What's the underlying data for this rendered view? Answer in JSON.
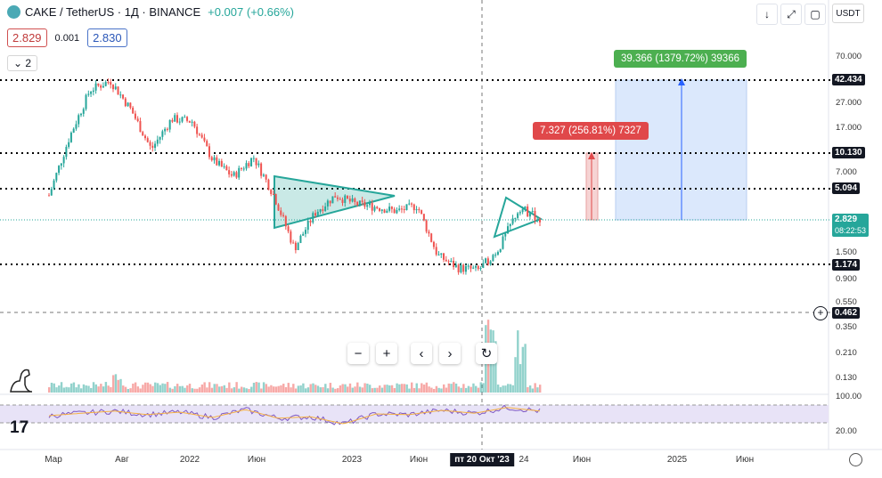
{
  "header": {
    "symbol": "CAKE / TetherUS · 1Д · BINANCE",
    "change": "+0.007 (+0.66%)",
    "bid": "2.829",
    "spread": "0.001",
    "ask": "2.830",
    "indicator_count": "2",
    "currency": "USDT"
  },
  "icons": [
    "down-arrow-icon",
    "fullscreen-icon",
    "camera-icon",
    "zoom-out-icon",
    "zoom-in-icon",
    "scroll-left-icon",
    "scroll-right-icon",
    "reset-icon",
    "add-icon",
    "settings-icon",
    "dino-icon",
    "tv-logo-icon"
  ],
  "price_axis": [
    "70.000",
    "27.000",
    "17.000",
    "7.000",
    "1.500",
    "0.900",
    "0.550",
    "0.350",
    "0.210",
    "0.130"
  ],
  "rsi_axis": [
    "100.00",
    "20.00"
  ],
  "price_tags": {
    "t1": "42.434",
    "t2": "10.130",
    "t3": "5.094",
    "current": "2.829",
    "countdown": "08:22:53",
    "t4": "1.174",
    "crosshair": "0.462"
  },
  "measure_green": "39.366 (1379.72%) 39366",
  "measure_red": "7.327 (256.81%) 7327",
  "time_axis": [
    "Мар",
    "Авг",
    "2022",
    "Июн",
    "2023",
    "Июн",
    "24",
    "Июн",
    "2025",
    "Июн"
  ],
  "crosshair_date": "пт 20 Окт '23",
  "logo": "17",
  "colors": {
    "up": "#26a69a",
    "down": "#ef5350",
    "green_label": "#4caf50",
    "red_label": "#e0484a",
    "zone": "#dbe8fc"
  },
  "chart_data": {
    "type": "line",
    "series": [
      {
        "values": [
          4.5,
          14,
          35,
          42,
          24,
          11,
          20,
          19,
          9,
          6.5,
          9.5,
          4.5,
          1.6,
          3.2,
          4.5,
          3.8,
          3.6,
          3.3,
          3.7,
          1.4,
          1.1,
          1.05,
          1.6,
          3.6,
          2.8
        ]
      },
      {
        "values": [
          45,
          52,
          58,
          48,
          55,
          40,
          62,
          38,
          42,
          22,
          50,
          48,
          60,
          52,
          68,
          58
        ]
      }
    ],
    "ylabel": "",
    "ylim": [
      0.1,
      100
    ]
  }
}
